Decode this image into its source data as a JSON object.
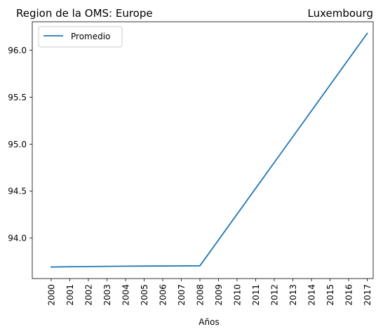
{
  "chart_data": {
    "type": "line",
    "title_left": "Region de la OMS: Europe",
    "title_right": "Luxembourg",
    "xlabel": "Años",
    "ylabel": "",
    "categories": [
      "2000",
      "2001",
      "2002",
      "2003",
      "2004",
      "2005",
      "2006",
      "2007",
      "2008",
      "2009",
      "2010",
      "2011",
      "2012",
      "2013",
      "2014",
      "2015",
      "2016",
      "2017"
    ],
    "series": [
      {
        "name": "Promedio",
        "color": "#1f77b4",
        "x": [
          "2000",
          "2001",
          "2002",
          "2003",
          "2004",
          "2005",
          "2006",
          "2007",
          "2008",
          "2017"
        ],
        "values": [
          93.69,
          93.693,
          93.695,
          93.697,
          93.699,
          93.7,
          93.701,
          93.702,
          93.703,
          96.18
        ]
      }
    ],
    "yticks": [
      "94.0",
      "94.5",
      "95.0",
      "95.5",
      "96.0"
    ],
    "ytick_values": [
      94.0,
      94.5,
      95.0,
      95.5,
      96.0
    ],
    "ylim": [
      93.567,
      96.304
    ],
    "grid": false,
    "legend_position": "top-left"
  }
}
